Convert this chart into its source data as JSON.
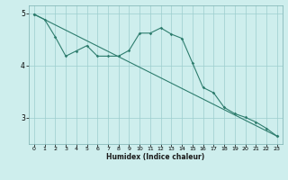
{
  "title": "",
  "xlabel": "Humidex (Indice chaleur)",
  "ylabel": "",
  "bg_color": "#ceeeed",
  "line_color": "#2e7d6e",
  "grid_color": "#9dcece",
  "xlim": [
    -0.5,
    23.5
  ],
  "ylim": [
    2.5,
    5.15
  ],
  "xticks": [
    0,
    1,
    2,
    3,
    4,
    5,
    6,
    7,
    8,
    9,
    10,
    11,
    12,
    13,
    14,
    15,
    16,
    17,
    18,
    19,
    20,
    21,
    22,
    23
  ],
  "yticks": [
    3,
    4,
    5
  ],
  "line1_x": [
    0,
    1,
    2,
    3,
    4,
    5,
    6,
    7,
    8,
    9,
    10,
    11,
    12,
    13,
    14,
    15,
    16,
    17,
    18,
    19,
    20,
    21,
    22,
    23
  ],
  "line1_y": [
    4.98,
    4.88,
    4.55,
    4.18,
    4.28,
    4.38,
    4.18,
    4.18,
    4.18,
    4.29,
    4.62,
    4.62,
    4.72,
    4.6,
    4.52,
    4.05,
    3.58,
    3.48,
    3.2,
    3.08,
    3.01,
    2.92,
    2.8,
    2.65
  ],
  "line2_x": [
    0,
    23
  ],
  "line2_y": [
    4.98,
    2.65
  ]
}
